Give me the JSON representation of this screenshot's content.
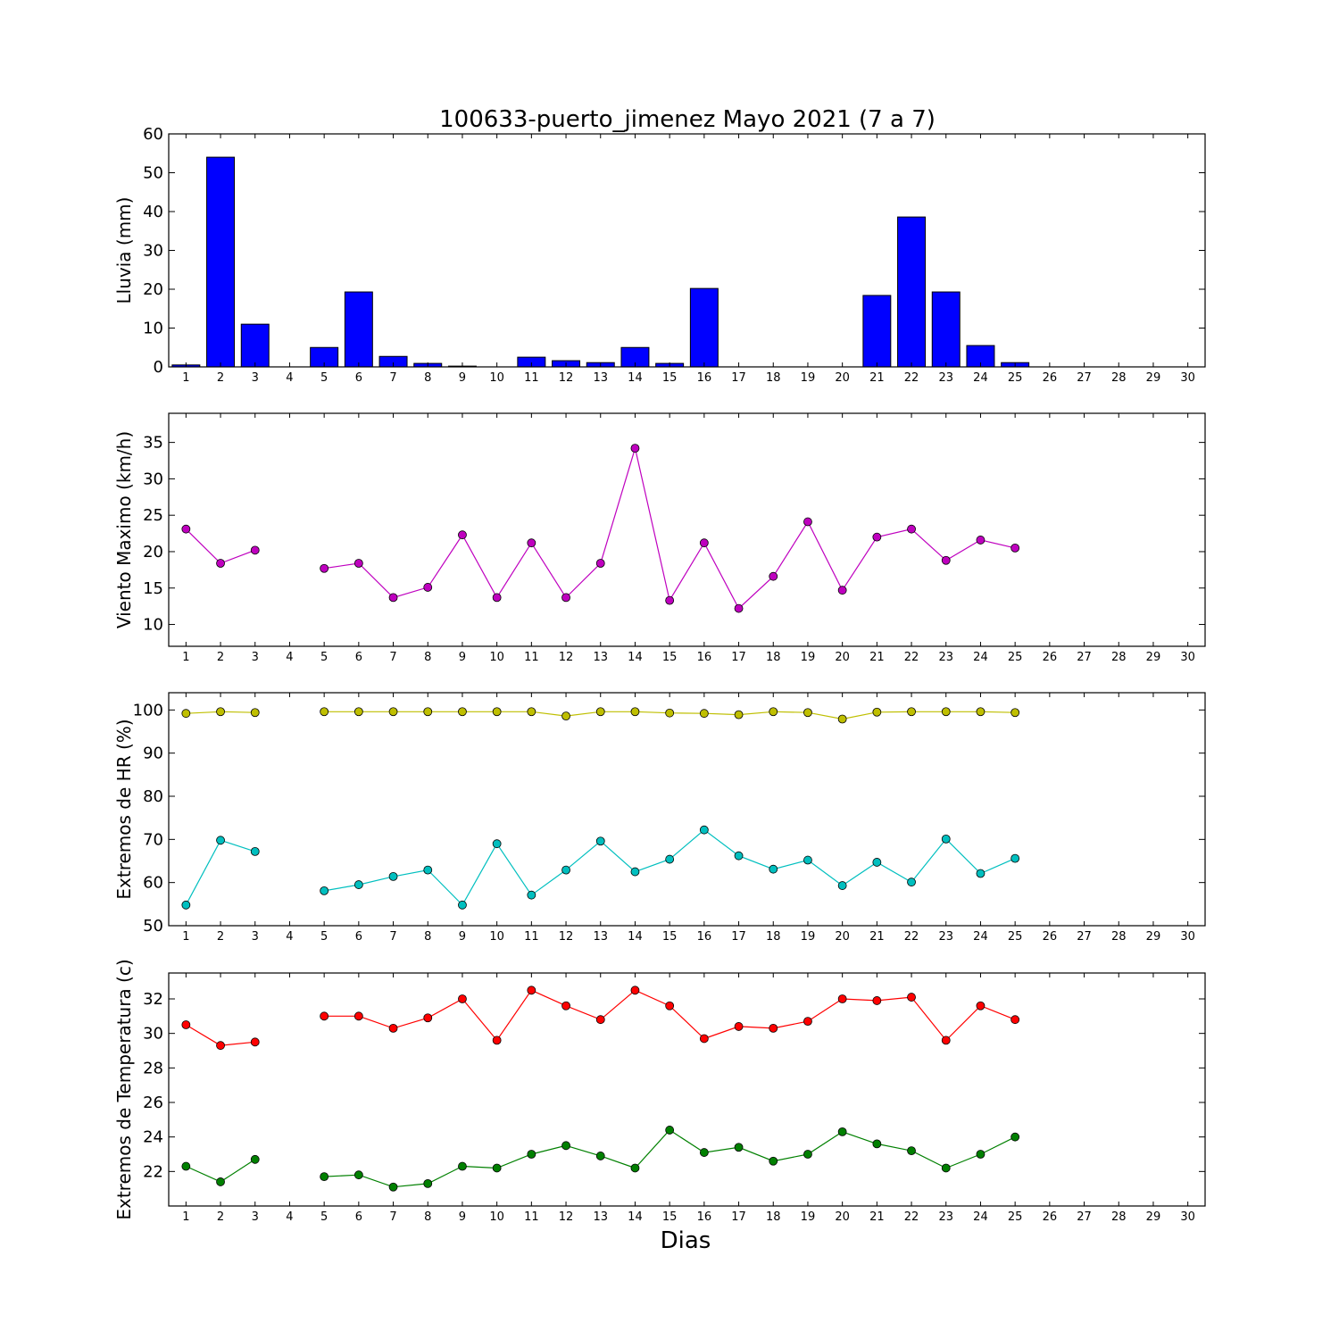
{
  "figure": {
    "title": "100633-puerto_jimenez Mayo 2021  (7 a 7)",
    "xlabel": "Dias"
  },
  "chart_data": [
    {
      "type": "bar",
      "ylabel": "Lluvia (mm)",
      "ylim": [
        0,
        60
      ],
      "yticks": [
        0,
        10,
        20,
        30,
        40,
        50,
        60
      ],
      "xlim": [
        0.5,
        30.5
      ],
      "x": [
        1,
        2,
        3,
        4,
        5,
        6,
        7,
        8,
        9,
        10,
        11,
        12,
        13,
        14,
        15,
        16,
        17,
        18,
        19,
        20,
        21,
        22,
        23,
        24,
        25,
        26,
        27,
        28,
        29,
        30
      ],
      "values": [
        0.5,
        54,
        11,
        0,
        5,
        19.3,
        2.7,
        0.9,
        0.2,
        0,
        2.5,
        1.6,
        1.1,
        5,
        0.9,
        20.2,
        0,
        0,
        0,
        0,
        18.4,
        38.6,
        19.3,
        5.5,
        1.1,
        null,
        null,
        null,
        null,
        null
      ],
      "color": "#0000ff"
    },
    {
      "type": "line",
      "ylabel": "Viento Maximo (km/h)",
      "ylim": [
        7,
        39
      ],
      "yticks": [
        10,
        15,
        20,
        25,
        30,
        35
      ],
      "xlim": [
        0.5,
        30.5
      ],
      "x": [
        1,
        2,
        3,
        4,
        5,
        6,
        7,
        8,
        9,
        10,
        11,
        12,
        13,
        14,
        15,
        16,
        17,
        18,
        19,
        20,
        21,
        22,
        23,
        24,
        25
      ],
      "series": [
        {
          "values": [
            23.1,
            18.4,
            20.2,
            null,
            17.7,
            18.4,
            13.7,
            15.1,
            22.3,
            13.7,
            21.2,
            13.7,
            18.4,
            34.2,
            13.3,
            21.2,
            12.2,
            16.6,
            24.1,
            14.7,
            22.0,
            23.1,
            18.8,
            21.6,
            20.5
          ],
          "color": "#bf00bf"
        }
      ]
    },
    {
      "type": "line",
      "ylabel": "Extremos de HR (%)",
      "ylim": [
        50,
        104
      ],
      "yticks": [
        50,
        60,
        70,
        80,
        90,
        100
      ],
      "xlim": [
        0.5,
        30.5
      ],
      "x": [
        1,
        2,
        3,
        4,
        5,
        6,
        7,
        8,
        9,
        10,
        11,
        12,
        13,
        14,
        15,
        16,
        17,
        18,
        19,
        20,
        21,
        22,
        23,
        24,
        25
      ],
      "series": [
        {
          "values": [
            99.2,
            99.6,
            99.4,
            null,
            99.6,
            99.6,
            99.6,
            99.6,
            99.6,
            99.6,
            99.6,
            98.6,
            99.6,
            99.6,
            99.3,
            99.2,
            98.9,
            99.6,
            99.4,
            97.9,
            99.5,
            99.6,
            99.6,
            99.6,
            99.4
          ],
          "color": "#bfbf00"
        },
        {
          "values": [
            54.8,
            69.8,
            67.2,
            null,
            58.1,
            59.5,
            61.4,
            62.9,
            54.8,
            69.0,
            57.1,
            62.9,
            69.6,
            62.5,
            65.4,
            72.2,
            66.2,
            63.1,
            65.2,
            59.3,
            64.7,
            60.1,
            70.1,
            62.1,
            65.6
          ],
          "color": "#00bfbf"
        }
      ]
    },
    {
      "type": "line",
      "ylabel": "Extremos de Temperatura (c)",
      "ylim": [
        20,
        33.5
      ],
      "yticks": [
        22,
        24,
        26,
        28,
        30,
        32
      ],
      "xlim": [
        0.5,
        30.5
      ],
      "x": [
        1,
        2,
        3,
        4,
        5,
        6,
        7,
        8,
        9,
        10,
        11,
        12,
        13,
        14,
        15,
        16,
        17,
        18,
        19,
        20,
        21,
        22,
        23,
        24,
        25
      ],
      "series": [
        {
          "values": [
            30.5,
            29.3,
            29.5,
            null,
            31.0,
            31.0,
            30.3,
            30.9,
            32.0,
            29.6,
            32.5,
            31.6,
            30.8,
            32.5,
            31.6,
            29.7,
            30.4,
            30.3,
            30.7,
            32.0,
            31.9,
            32.1,
            29.6,
            31.6,
            30.8
          ],
          "color": "#ff0000"
        },
        {
          "values": [
            22.3,
            21.4,
            22.7,
            null,
            21.7,
            21.8,
            21.1,
            21.3,
            22.3,
            22.2,
            23.0,
            23.5,
            22.9,
            22.2,
            24.4,
            23.1,
            23.4,
            22.6,
            23.0,
            24.3,
            23.6,
            23.2,
            22.2,
            23.0,
            24.0
          ],
          "color": "#008000"
        }
      ]
    }
  ]
}
